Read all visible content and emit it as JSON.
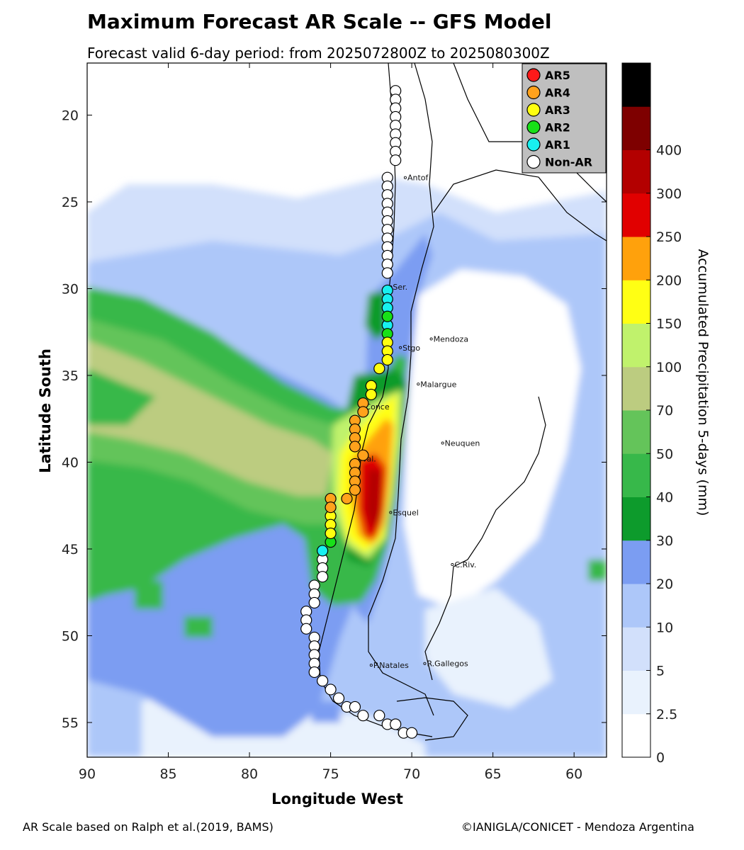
{
  "title": "Maximum Forecast AR Scale -- GFS Model",
  "subtitle": "Forecast valid 6-day period: from 2025072800Z to 2025080300Z",
  "axes": {
    "xlabel": "Longitude West",
    "ylabel": "Latitude South",
    "x_ticks": [
      "90",
      "85",
      "80",
      "75",
      "70",
      "65",
      "60"
    ],
    "y_ticks": [
      "20",
      "25",
      "30",
      "35",
      "40",
      "45",
      "50",
      "55"
    ],
    "xlim": [
      90,
      58
    ],
    "ylim": [
      17,
      57
    ]
  },
  "colorbar": {
    "label": "Accumulated Precipitation 5-days (mm)",
    "ticks": [
      "0",
      "2.5",
      "5",
      "10",
      "20",
      "30",
      "40",
      "50",
      "70",
      "100",
      "150",
      "200",
      "250",
      "300",
      "400"
    ],
    "colors": [
      "#ffffff",
      "#e9f2fd",
      "#d2e0fb",
      "#adc7f9",
      "#7b9df2",
      "#0d9b2c",
      "#37b84a",
      "#64c45a",
      "#bccc80",
      "#c0f26c",
      "#ffff14",
      "#ffa10c",
      "#e10000",
      "#b30000",
      "#7e0000",
      "#000000"
    ]
  },
  "legend": {
    "items": [
      {
        "label": "AR5",
        "color": "#ff1a1a"
      },
      {
        "label": "AR4",
        "color": "#ffa21c"
      },
      {
        "label": "AR3",
        "color": "#ffff10"
      },
      {
        "label": "AR2",
        "color": "#18e018"
      },
      {
        "label": "AR1",
        "color": "#18f0f0"
      },
      {
        "label": "Non-AR",
        "color": "#ffffff"
      }
    ]
  },
  "cities": [
    {
      "name": "Antof",
      "lon": 70.4,
      "lat": 23.6
    },
    {
      "name": "Ser.",
      "lon": 71.3,
      "lat": 29.9
    },
    {
      "name": "Mendoza",
      "lon": 68.8,
      "lat": 32.9
    },
    {
      "name": "Stgo",
      "lon": 70.7,
      "lat": 33.4
    },
    {
      "name": "Malargue",
      "lon": 69.6,
      "lat": 35.5
    },
    {
      "name": "Conce",
      "lon": 73.0,
      "lat": 36.8
    },
    {
      "name": "Neuquen",
      "lon": 68.1,
      "lat": 38.9
    },
    {
      "name": "Val.",
      "lon": 73.2,
      "lat": 39.8
    },
    {
      "name": "Esquel",
      "lon": 71.3,
      "lat": 42.9
    },
    {
      "name": "C.Riv.",
      "lon": 67.5,
      "lat": 45.9
    },
    {
      "name": "P.Natales",
      "lon": 72.5,
      "lat": 51.7
    },
    {
      "name": "R.Gallegos",
      "lon": 69.2,
      "lat": 51.6
    }
  ],
  "chart_data": {
    "type": "scatter",
    "series": [
      {
        "name": "Non-AR",
        "category": 0,
        "points": [
          [
            71,
            18.6
          ],
          [
            71,
            19.1
          ],
          [
            71,
            19.6
          ],
          [
            71,
            20.1
          ],
          [
            71,
            20.6
          ],
          [
            71,
            21.1
          ],
          [
            71,
            21.6
          ],
          [
            71,
            22.1
          ],
          [
            71,
            22.6
          ],
          [
            71.5,
            23.6
          ],
          [
            71.5,
            24.1
          ],
          [
            71.5,
            24.6
          ],
          [
            71.5,
            25.1
          ],
          [
            71.5,
            25.6
          ],
          [
            71.5,
            26.1
          ],
          [
            71.5,
            26.6
          ],
          [
            71.5,
            27.1
          ],
          [
            71.5,
            27.6
          ],
          [
            71.5,
            28.1
          ],
          [
            71.5,
            28.6
          ],
          [
            71.5,
            29.1
          ],
          [
            75.5,
            45.6
          ],
          [
            75.5,
            46.1
          ],
          [
            75.5,
            46.6
          ],
          [
            76,
            47.1
          ],
          [
            76,
            47.6
          ],
          [
            76,
            48.1
          ],
          [
            76.5,
            48.6
          ],
          [
            76.5,
            49.1
          ],
          [
            76.5,
            49.6
          ],
          [
            76,
            50.1
          ],
          [
            76,
            50.6
          ],
          [
            76,
            51.1
          ],
          [
            76,
            51.6
          ],
          [
            76,
            52.1
          ],
          [
            75.5,
            52.6
          ],
          [
            75,
            53.1
          ],
          [
            74.5,
            53.6
          ],
          [
            74,
            54.1
          ],
          [
            73.5,
            54.1
          ],
          [
            73,
            54.6
          ],
          [
            72,
            54.6
          ],
          [
            71.5,
            55.1
          ],
          [
            71,
            55.1
          ],
          [
            70.5,
            55.6
          ],
          [
            70,
            55.6
          ]
        ]
      },
      {
        "name": "AR1",
        "category": 1,
        "points": [
          [
            71.5,
            30.1
          ],
          [
            71.5,
            30.6
          ],
          [
            71.5,
            31.1
          ],
          [
            71.5,
            32.1
          ],
          [
            75.5,
            45.1
          ]
        ]
      },
      {
        "name": "AR2",
        "category": 2,
        "points": [
          [
            71.5,
            31.6
          ],
          [
            71.5,
            32.6
          ],
          [
            75,
            44.6
          ]
        ]
      },
      {
        "name": "AR3",
        "category": 3,
        "points": [
          [
            71.5,
            33.1
          ],
          [
            71.5,
            33.6
          ],
          [
            71.5,
            34.1
          ],
          [
            72,
            34.6
          ],
          [
            72.5,
            35.6
          ],
          [
            72.5,
            36.1
          ],
          [
            75,
            43.1
          ],
          [
            75,
            43.6
          ],
          [
            75,
            44.1
          ]
        ]
      },
      {
        "name": "AR4",
        "category": 4,
        "points": [
          [
            73,
            36.6
          ],
          [
            73,
            37.1
          ],
          [
            73.5,
            37.6
          ],
          [
            73.5,
            38.1
          ],
          [
            73.5,
            38.6
          ],
          [
            73.5,
            39.1
          ],
          [
            73,
            39.6
          ],
          [
            73.5,
            40.1
          ],
          [
            73.5,
            40.6
          ],
          [
            73.5,
            41.1
          ],
          [
            73.5,
            41.6
          ],
          [
            74,
            42.1
          ],
          [
            75,
            42.1
          ],
          [
            75,
            42.6
          ]
        ]
      },
      {
        "name": "AR5",
        "category": 5,
        "points": []
      }
    ]
  }
}
